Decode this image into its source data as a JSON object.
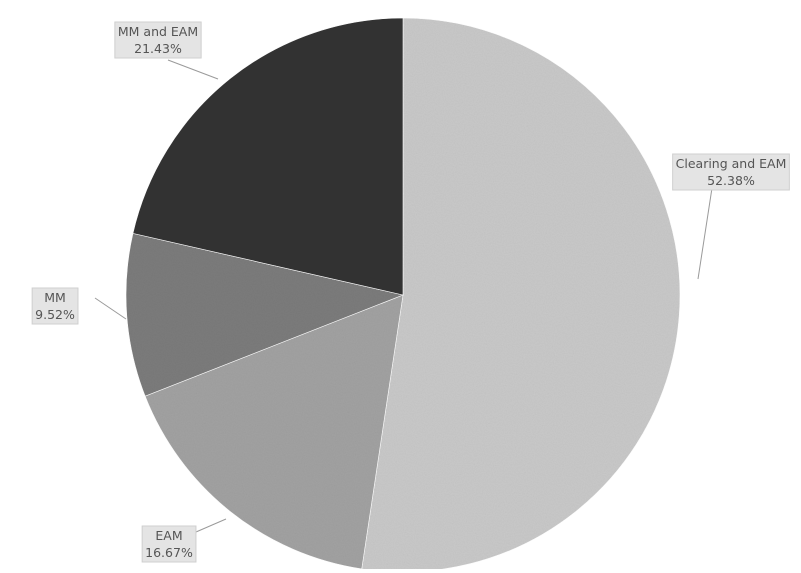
{
  "chart_data": {
    "type": "pie",
    "title": "",
    "start_angle_deg": 0,
    "direction": "clockwise",
    "slices": [
      {
        "name": "Clearing and EAM",
        "value": 52.38,
        "label": "52.38%",
        "color": "#c9c9c9"
      },
      {
        "name": "EAM",
        "value": 16.67,
        "label": "16.67%",
        "color": "#a2a2a2"
      },
      {
        "name": "MM",
        "value": 9.52,
        "label": "9.52%",
        "color": "#7c7c7c"
      },
      {
        "name": "MM and EAM",
        "value": 21.43,
        "label": "21.43%",
        "color": "#333333"
      }
    ],
    "legend": "none",
    "data_labels": "category and percentage, outside with leader lines"
  }
}
